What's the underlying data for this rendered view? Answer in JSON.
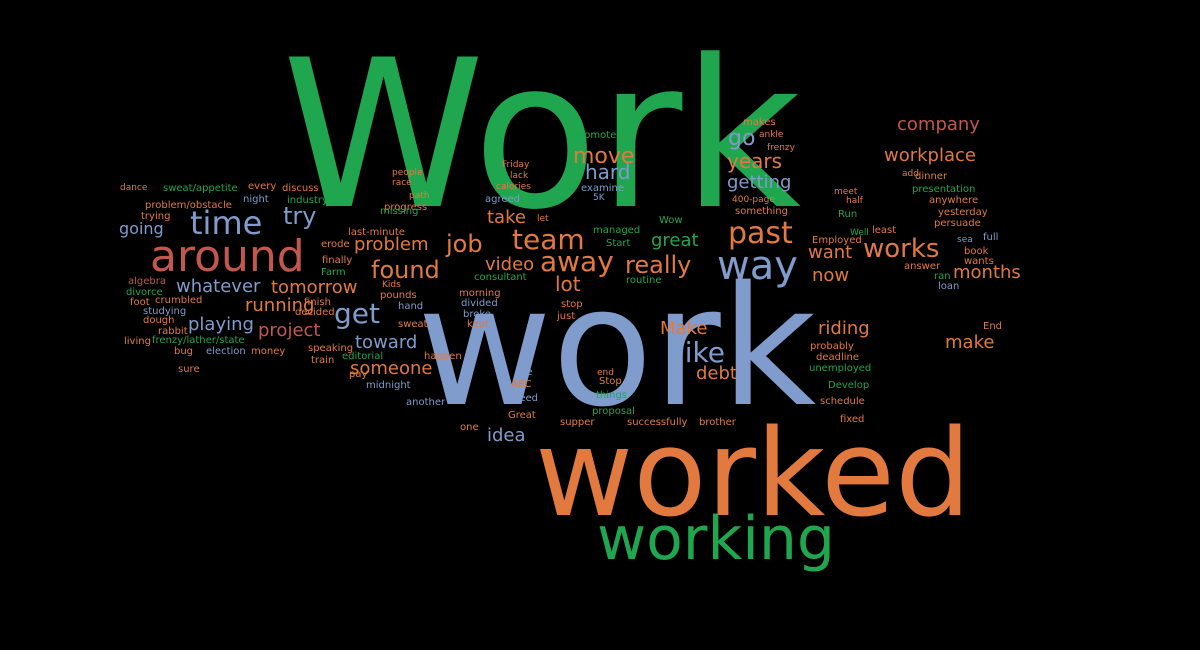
{
  "palette": {
    "background": "#000000",
    "green": "#1fa64f",
    "blue": "#7f9ccc",
    "orange": "#e27a3f",
    "red": "#c4574c"
  },
  "words": {
    "Work": "Work",
    "work": "work",
    "worked": "worked",
    "working": "working",
    "time": "time",
    "around": "around",
    "try": "try",
    "way": "way",
    "past": "past",
    "team": "team",
    "away": "away",
    "job": "job",
    "found": "found",
    "get": "get",
    "really": "really",
    "works": "works",
    "like": "like",
    "company": "company",
    "workplace": "workplace",
    "move": "move",
    "hard": "hard",
    "go": "go",
    "years": "years",
    "getting": "getting",
    "take": "take",
    "great": "great",
    "want": "want",
    "now": "now",
    "months": "months",
    "problem": "problem",
    "video": "video",
    "lot": "lot",
    "whatever": "whatever",
    "tomorrow": "tomorrow",
    "running": "running",
    "playing": "playing",
    "project": "project",
    "toward": "toward",
    "someone": "someone",
    "Make": "Make",
    "debt": "debt",
    "riding": "riding",
    "make": "make",
    "idea": "idea",
    "going": "going",
    "promoted": "promoted",
    "makes": "makes",
    "ankle": "ankle",
    "frenzy": "frenzy",
    "Friday": "Friday",
    "lack": "lack",
    "calories": "calories",
    "examine": "examine",
    "5K": "5K",
    "people": "people",
    "race": "race",
    "dance": "dance",
    "sweat_appetite": "sweat/appetite",
    "every": "every",
    "discuss": "discuss",
    "night": "night",
    "industry": "industry",
    "path": "path",
    "agreed": "agreed",
    "problem_obstacle": "problem/obstacle",
    "progress": "progress",
    "trying": "trying",
    "missing": "missing",
    "let": "let",
    "400-page": "400-page",
    "something": "something",
    "Wow": "Wow",
    "managed": "managed",
    "Start": "Start",
    "last-minute": "last-minute",
    "erode": "erode",
    "finally": "finally",
    "Farm": "Farm",
    "consultant": "consultant",
    "routine": "routine",
    "algebra": "algebra",
    "divorce": "divorce",
    "foot": "foot",
    "crumbled": "crumbled",
    "studying": "studying",
    "dough": "dough",
    "rabbit": "rabbit",
    "living": "living",
    "frenzy_lather_state": "frenzy/lather/state",
    "bug": "bug",
    "election": "election",
    "money": "money",
    "sure": "sure",
    "Kids": "Kids",
    "pounds": "pounds",
    "finish": "finish",
    "decided": "decided",
    "hand": "hand",
    "sweat": "sweat",
    "speaking": "speaking",
    "train": "train",
    "editorial": "editorial",
    "pay": "pay",
    "midnight": "midnight",
    "happen": "happen",
    "morning": "morning",
    "divided": "divided",
    "broke": "broke",
    "kept": "kept",
    "stop": "stop",
    "just": "just",
    "end": "end",
    "see": "see",
    "ABC": "ABC",
    "need": "need",
    "another": "another",
    "one": "one",
    "Great": "Great",
    "supper": "supper",
    "things": "things",
    "Stop": "Stop",
    "proposal": "proposal",
    "successfully": "successfully",
    "brother": "brother",
    "fixed": "fixed",
    "schedule": "schedule",
    "Develop": "Develop",
    "unemployed": "unemployed",
    "deadline": "deadline",
    "probably": "probably",
    "meet": "meet",
    "Employed": "Employed",
    "Well": "Well",
    "least": "least",
    "sea": "sea",
    "full": "full",
    "book": "book",
    "wants": "wants",
    "answer": "answer",
    "ran": "ran",
    "loan": "loan",
    "persuade": "persuade",
    "yesterday": "yesterday",
    "anywhere": "anywhere",
    "presentation": "presentation",
    "add": "add",
    "dinner": "dinner",
    "half": "half",
    "Run": "Run",
    "End": "End"
  }
}
